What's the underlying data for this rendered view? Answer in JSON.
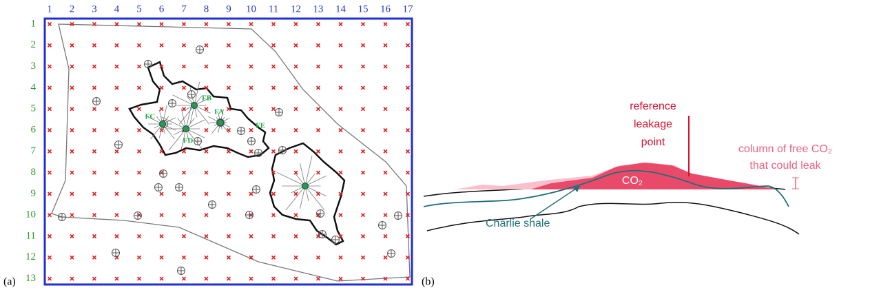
{
  "panel_a": {
    "label": "(a)",
    "columns": [
      1,
      2,
      3,
      4,
      5,
      6,
      7,
      8,
      9,
      10,
      11,
      12,
      13,
      14,
      15,
      16,
      17
    ],
    "rows": [
      1,
      2,
      3,
      4,
      5,
      6,
      7,
      8,
      9,
      10,
      11,
      12,
      13
    ],
    "fields": [
      "FA",
      "FB",
      "FC",
      "FD",
      "FE"
    ]
  },
  "panel_b": {
    "label": "(b)",
    "reference": [
      "reference",
      "leakage",
      "point"
    ],
    "column_note": [
      "column of free CO₂",
      "that could leak"
    ],
    "mound": "CO₂",
    "shale": "Charlie shale"
  }
}
